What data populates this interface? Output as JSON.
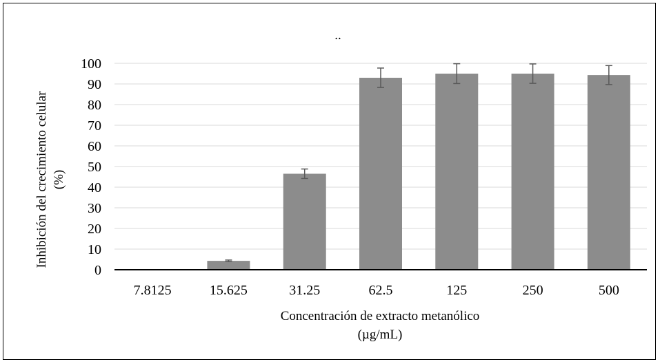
{
  "chart_data": {
    "type": "bar",
    "title": "..",
    "xlabel": [
      "Concentración de extracto metanólico",
      "(µg/mL)"
    ],
    "ylabel": [
      "Inhibición del crecimiento celular",
      "(%)"
    ],
    "categories": [
      "7.8125",
      "15.625",
      "31.25",
      "62.5",
      "125",
      "250",
      "500"
    ],
    "values": [
      0,
      4.3,
      46.5,
      93,
      95,
      95,
      94.3
    ],
    "error": [
      0,
      0.4,
      2.3,
      4.7,
      4.8,
      4.7,
      4.6
    ],
    "ylim": [
      0,
      100
    ],
    "yticks": [
      0,
      10,
      20,
      30,
      40,
      50,
      60,
      70,
      80,
      90,
      100
    ],
    "grid": true,
    "legend": "none",
    "colors": {
      "bar": "#8c8c8c",
      "error_bar": "#595959",
      "grid": "#d9d9d9",
      "axis": "#000000"
    }
  }
}
